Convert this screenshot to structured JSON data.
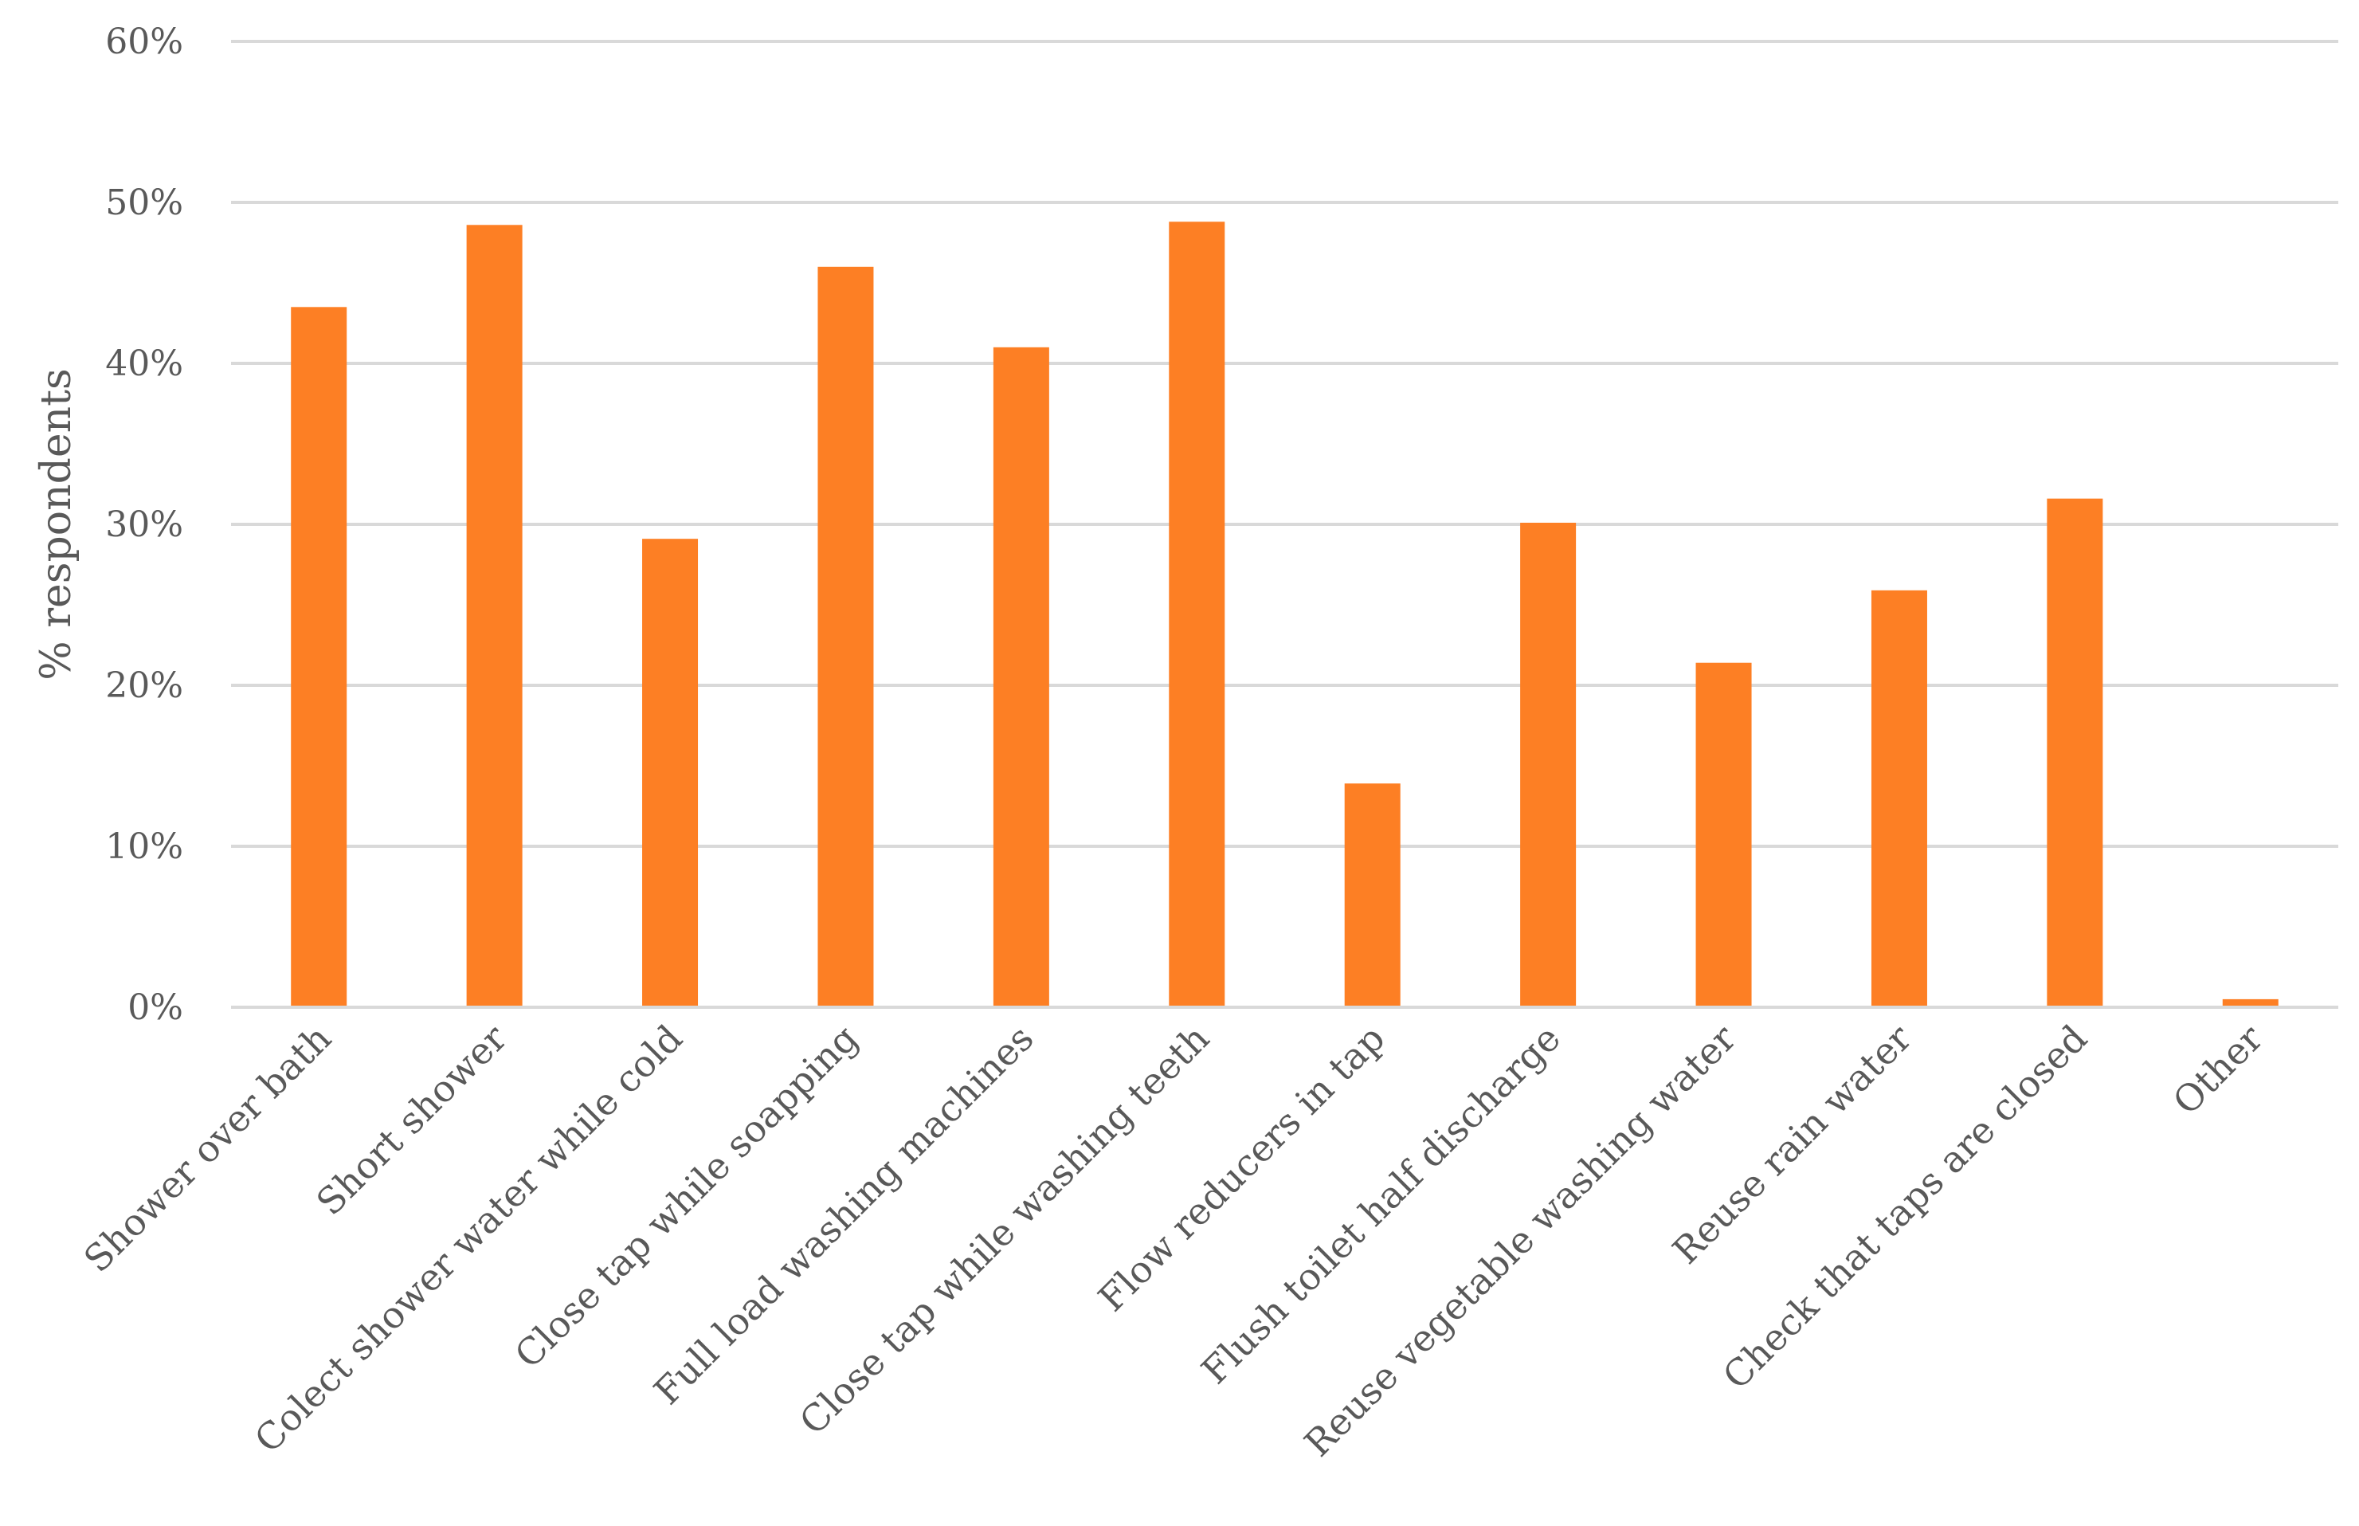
{
  "chart_data": {
    "type": "bar",
    "title": "",
    "xlabel": "",
    "ylabel": "% respondents",
    "ylim": [
      0,
      60
    ],
    "y_ticks": [
      "0%",
      "10%",
      "20%",
      "30%",
      "40%",
      "50%",
      "60%"
    ],
    "y_tick_values": [
      0,
      10,
      20,
      30,
      40,
      50,
      60
    ],
    "grid": true,
    "legend": "none",
    "bar_color": "#fd7f24",
    "categories": [
      "Shower over bath",
      "Short shower",
      "Colect shower water while cold",
      "Close tap while soapping",
      "Full load washing machines",
      "Close tap while washing teeth",
      "Flow reducers in tap",
      "Flush toilet half discharge",
      "Reuse vegetable washing water",
      "Reuse rain water",
      "Check that taps are closed",
      "Other"
    ],
    "values": [
      43.5,
      48.6,
      29.1,
      46.0,
      41.0,
      48.8,
      13.9,
      30.1,
      21.4,
      25.9,
      31.6,
      0.5
    ]
  }
}
